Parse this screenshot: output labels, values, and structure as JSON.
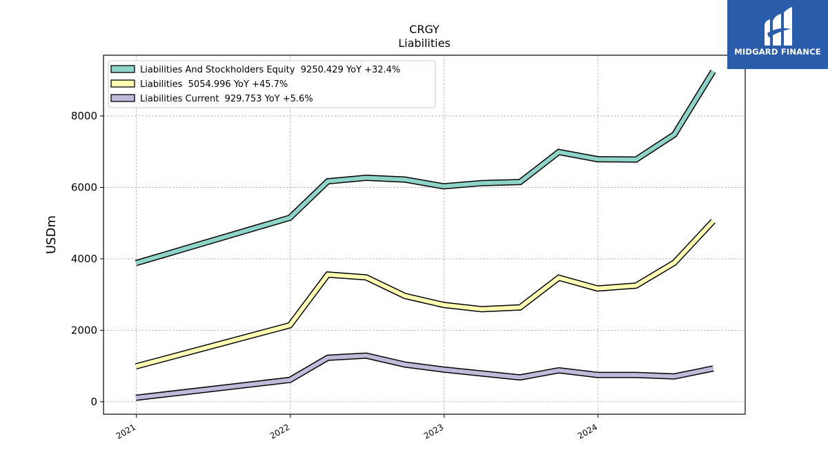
{
  "brand": {
    "name": "MIDGARD FINANCE",
    "color": "#2a5cac"
  },
  "chart_data": {
    "type": "line",
    "title": "CRGY",
    "subtitle": "Liabilities",
    "xlabel": "",
    "ylabel": "USDm",
    "xlim": [
      "2020-10-15",
      "2024-12-15"
    ],
    "ylim": [
      -350,
      9700
    ],
    "x_ticks": [
      "2021-01-01",
      "2022-01-01",
      "2023-01-01",
      "2024-01-01"
    ],
    "x_tick_labels": [
      "2021",
      "2022",
      "2023",
      "2024"
    ],
    "y_ticks": [
      0,
      2000,
      4000,
      6000,
      8000
    ],
    "y_tick_labels": [
      "0",
      "2000",
      "4000",
      "6000",
      "8000"
    ],
    "grid": true,
    "legend_position": "top-left",
    "series": [
      {
        "name": "Liabilities And Stockholders Equity",
        "legend_label": "Liabilities And Stockholders Equity  9250.429 YoY +32.4%",
        "color": "#8dd3c7",
        "x": [
          "2020-12-31",
          "2021-12-31",
          "2022-03-31",
          "2022-06-30",
          "2022-09-30",
          "2022-12-31",
          "2023-03-31",
          "2023-06-30",
          "2023-09-30",
          "2023-12-31",
          "2024-03-31",
          "2024-06-30",
          "2024-09-30"
        ],
        "values": [
          3880,
          5150,
          6170,
          6270,
          6220,
          6030,
          6120,
          6150,
          6990,
          6790,
          6780,
          7480,
          9250.429
        ]
      },
      {
        "name": "Liabilities",
        "legend_label": "Liabilities  5054.996 YoY +45.7%",
        "color": "#ffffb3",
        "x": [
          "2020-12-31",
          "2021-12-31",
          "2022-03-31",
          "2022-06-30",
          "2022-09-30",
          "2022-12-31",
          "2023-03-31",
          "2023-06-30",
          "2023-09-30",
          "2023-12-31",
          "2024-03-31",
          "2024-06-30",
          "2024-09-30"
        ],
        "values": [
          990,
          2140,
          3560,
          3480,
          2960,
          2710,
          2590,
          2640,
          3470,
          3170,
          3250,
          3890,
          5054.996
        ]
      },
      {
        "name": "Liabilities Current",
        "legend_label": "Liabilities Current  929.753 YoY +5.6%",
        "color": "#bebada",
        "x": [
          "2020-12-31",
          "2021-12-31",
          "2022-03-31",
          "2022-06-30",
          "2022-09-30",
          "2022-12-31",
          "2023-03-31",
          "2023-06-30",
          "2023-09-30",
          "2023-12-31",
          "2024-03-31",
          "2024-06-30",
          "2024-09-30"
        ],
        "values": [
          110,
          610,
          1230,
          1290,
          1040,
          900,
          790,
          680,
          880,
          750,
          750,
          710,
          929.753
        ]
      }
    ]
  }
}
